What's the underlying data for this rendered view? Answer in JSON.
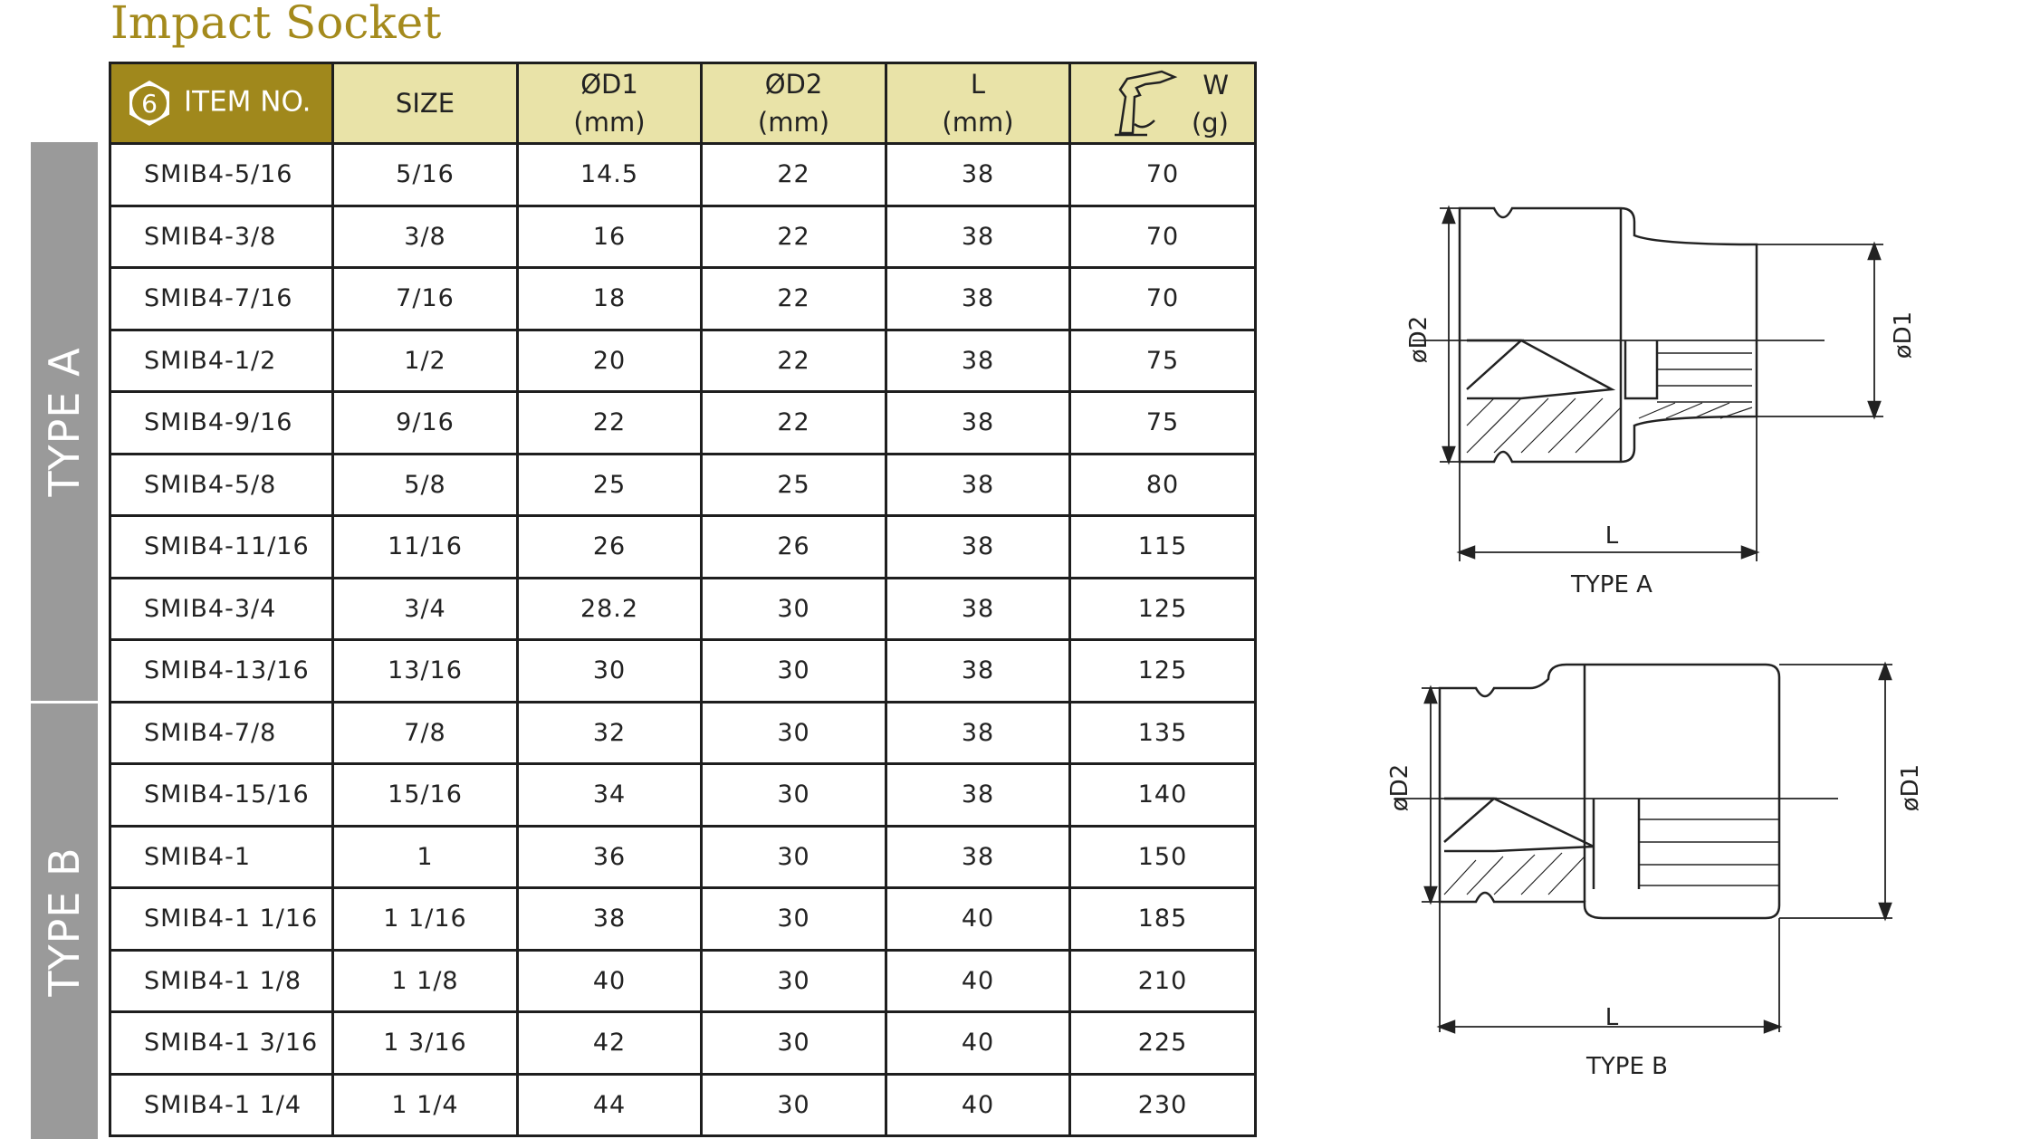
{
  "title": "Impact Socket",
  "sidebar": {
    "type_a": "TYPE A",
    "type_b": "TYPE B"
  },
  "badge": "6",
  "headers": {
    "item": "ITEM NO.",
    "size": "SIZE",
    "d1": "ØD1",
    "d2": "ØD2",
    "l": "L",
    "mm": "(mm)",
    "w": "W",
    "g": "(g)"
  },
  "rows": [
    {
      "item": "SMIB4-5/16",
      "size": "5/16",
      "d1": "14.5",
      "d2": "22",
      "l": "38",
      "w": "70"
    },
    {
      "item": "SMIB4-3/8",
      "size": "3/8",
      "d1": "16",
      "d2": "22",
      "l": "38",
      "w": "70"
    },
    {
      "item": "SMIB4-7/16",
      "size": "7/16",
      "d1": "18",
      "d2": "22",
      "l": "38",
      "w": "70"
    },
    {
      "item": "SMIB4-1/2",
      "size": "1/2",
      "d1": "20",
      "d2": "22",
      "l": "38",
      "w": "75"
    },
    {
      "item": "SMIB4-9/16",
      "size": "9/16",
      "d1": "22",
      "d2": "22",
      "l": "38",
      "w": "75"
    },
    {
      "item": "SMIB4-5/8",
      "size": "5/8",
      "d1": "25",
      "d2": "25",
      "l": "38",
      "w": "80"
    },
    {
      "item": "SMIB4-11/16",
      "size": "11/16",
      "d1": "26",
      "d2": "26",
      "l": "38",
      "w": "115"
    },
    {
      "item": "SMIB4-3/4",
      "size": "3/4",
      "d1": "28.2",
      "d2": "30",
      "l": "38",
      "w": "125"
    },
    {
      "item": "SMIB4-13/16",
      "size": "13/16",
      "d1": "30",
      "d2": "30",
      "l": "38",
      "w": "125"
    },
    {
      "item": "SMIB4-7/8",
      "size": "7/8",
      "d1": "32",
      "d2": "30",
      "l": "38",
      "w": "135"
    },
    {
      "item": "SMIB4-15/16",
      "size": "15/16",
      "d1": "34",
      "d2": "30",
      "l": "38",
      "w": "140"
    },
    {
      "item": "SMIB4-1",
      "size": "1",
      "d1": "36",
      "d2": "30",
      "l": "38",
      "w": "150"
    },
    {
      "item": "SMIB4-1 1/16",
      "size": "1 1/16",
      "d1": "38",
      "d2": "30",
      "l": "40",
      "w": "185"
    },
    {
      "item": "SMIB4-1 1/8",
      "size": "1 1/8",
      "d1": "40",
      "d2": "30",
      "l": "40",
      "w": "210"
    },
    {
      "item": "SMIB4-1 3/16",
      "size": "1 3/16",
      "d1": "42",
      "d2": "30",
      "l": "40",
      "w": "225"
    },
    {
      "item": "SMIB4-1 1/4",
      "size": "1 1/4",
      "d1": "44",
      "d2": "30",
      "l": "40",
      "w": "230"
    }
  ],
  "diagram_a": {
    "d2": "øD2",
    "d1": "øD1",
    "l": "L",
    "caption": "TYPE A"
  },
  "diagram_b": {
    "d2": "øD2",
    "d1": "øD1",
    "l": "L",
    "caption": "TYPE B"
  },
  "colors": {
    "title": "#a48a1c",
    "header_bg": "#e9e3a8",
    "item_header_bg": "#a0881c",
    "sidebar": "#9a9a9a",
    "divider": "#d6477a"
  }
}
